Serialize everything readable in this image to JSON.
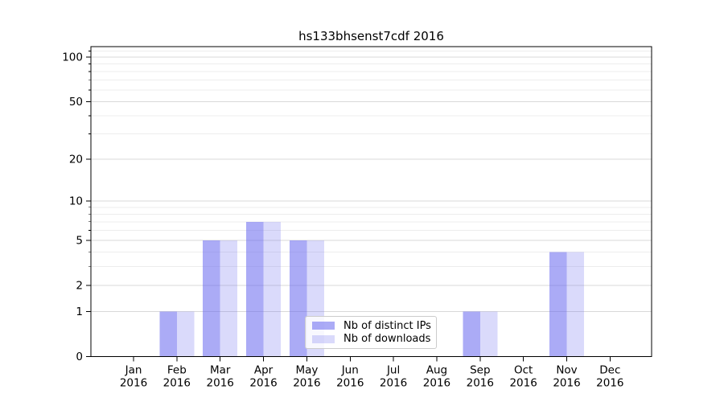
{
  "chart_data": {
    "type": "bar",
    "title": "hs133bhsenst7cdf 2016",
    "categories": [
      "Jan 2016",
      "Feb 2016",
      "Mar 2016",
      "Apr 2016",
      "May 2016",
      "Jun 2016",
      "Jul 2016",
      "Aug 2016",
      "Sep 2016",
      "Oct 2016",
      "Nov 2016",
      "Dec 2016"
    ],
    "x_tick_month_labels": [
      "Jan",
      "Feb",
      "Mar",
      "Apr",
      "May",
      "Jun",
      "Jul",
      "Aug",
      "Sep",
      "Oct",
      "Nov",
      "Dec"
    ],
    "x_tick_year_label": "2016",
    "series": [
      {
        "name": "Nb of distinct IPs",
        "values": [
          0,
          1,
          5,
          7,
          5,
          0,
          0,
          0,
          1,
          0,
          4,
          0
        ],
        "color": "#6666ee",
        "opacity": 0.55
      },
      {
        "name": "Nb of downloads",
        "values": [
          0,
          1,
          5,
          7,
          5,
          0,
          0,
          0,
          1,
          0,
          4,
          0
        ],
        "color": "#6666ee",
        "opacity": 0.24
      }
    ],
    "xlabel": "",
    "ylabel": "",
    "yscale": "log1p",
    "ylim": [
      0,
      118
    ],
    "yticks": [
      0,
      1,
      2,
      5,
      10,
      20,
      50,
      100
    ],
    "yticks_minor": [
      3,
      4,
      6,
      7,
      8,
      9,
      30,
      40,
      60,
      70,
      80,
      90,
      110
    ],
    "grid": true,
    "legend_position": "lower center",
    "colors": {
      "bar_distinct_ips_effective": "#a9a9f6",
      "bar_downloads_effective": "#dadaf8",
      "grid_major": "#d9d9d9",
      "grid_minor": "#ededed",
      "axis": "#000000",
      "text": "#000000",
      "legend_border": "#cccccc"
    }
  }
}
